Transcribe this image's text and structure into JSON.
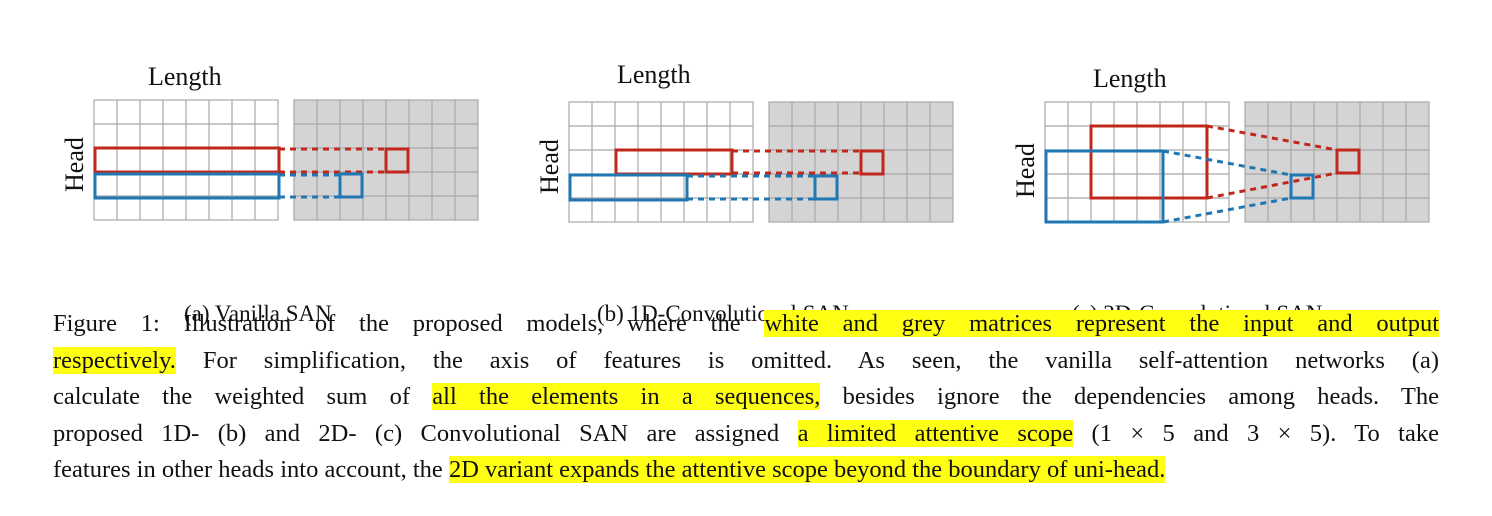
{
  "panels": [
    {
      "id": "a",
      "length_label": "Length",
      "head_label": "Head",
      "caption": "(a) Vanilla SAN"
    },
    {
      "id": "b",
      "length_label": "Length",
      "head_label": "Head",
      "caption": "(b) 1D-Convolutional SAN"
    },
    {
      "id": "c",
      "length_label": "Length",
      "head_label": "Head",
      "caption": "(c) 2D-Convolutional SAN"
    }
  ],
  "grid": {
    "cols": 8,
    "rows": 5
  },
  "colors": {
    "red": "#c0281e",
    "blue": "#1f77b4",
    "grey_fill": "#d4d4d4",
    "grid_line": "#a8a8a8",
    "highlight": "#ffff14"
  },
  "caption": {
    "l1_a": "Figure 1: Illustration of the proposed models, where the ",
    "l1_hl": "white and grey matrices represent the input and output",
    "l2_hl": "respectively.",
    "l2_b": " For simplification, the axis of features is omitted. As seen, the vanilla self-attention networks (a)",
    "l3_a": "calculate the weighted sum of ",
    "l3_hl": "all the elements in a sequences,",
    "l3_b": " besides ignore the dependencies among heads. The",
    "l4_a": "proposed 1D- (b) and 2D- (c) Convolutional SAN are assigned ",
    "l4_hl": "a limited attentive scope",
    "l4_b": " (1 × 5 and 3 × 5). To take",
    "l5_a": "features in other heads into account, the ",
    "l5_hl": "2D variant expands the attentive scope beyond the boundary of uni-head."
  }
}
